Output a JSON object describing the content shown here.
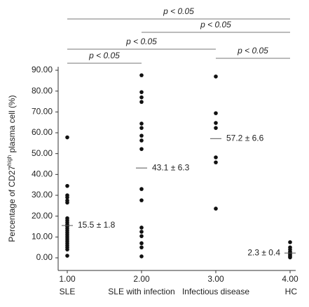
{
  "chart_data": {
    "type": "dot",
    "ylabel": [
      "Percentage of CD27",
      "high",
      " plasma cell (%)"
    ],
    "categories": [
      "SLE",
      "SLE with infection",
      "Infectious disease",
      "HC"
    ],
    "xlim": [
      1,
      4
    ],
    "xticks": [
      {
        "value": 1,
        "label": "1.00"
      },
      {
        "value": 2,
        "label": "2.00"
      },
      {
        "value": 3,
        "label": "3.00"
      },
      {
        "value": 4,
        "label": "4.00"
      }
    ],
    "ylim": [
      0,
      90
    ],
    "yticks": [
      {
        "value": 0,
        "label": "0.00"
      },
      {
        "value": 10,
        "label": "10.00"
      },
      {
        "value": 20,
        "label": "20.00"
      },
      {
        "value": 30,
        "label": "30.00"
      },
      {
        "value": 40,
        "label": "40.00"
      },
      {
        "value": 50,
        "label": "50.00"
      },
      {
        "value": 60,
        "label": "60.00"
      },
      {
        "value": 70,
        "label": "70.00"
      },
      {
        "value": 80,
        "label": "80.00"
      },
      {
        "value": 90,
        "label": "90.00"
      }
    ],
    "color": "#111111",
    "points": [
      [
        57.8,
        34.5,
        30,
        29,
        27.5,
        26.5,
        19,
        18,
        17,
        16,
        15,
        14,
        13,
        12,
        11,
        10,
        9,
        8,
        7,
        6,
        5,
        4,
        1
      ],
      [
        87.6,
        79.5,
        77,
        74.8,
        64.4,
        62.3,
        58.6,
        56.3,
        52.2,
        33,
        27.6,
        14.5,
        12.5,
        10.4,
        7,
        5,
        0.7
      ],
      [
        87,
        69.4,
        64.7,
        62.3,
        48.2,
        45.8,
        23.6
      ],
      [
        7.5,
        5,
        4,
        3,
        2.5,
        2,
        1.5,
        1,
        0.5,
        0.2
      ]
    ],
    "means": [
      15.5,
      43.1,
      57.2,
      2.3
    ],
    "mean_labels": [
      "15.5 ± 1.8",
      "43.1 ± 6.3",
      "57.2 ± 6.6",
      "2.3 ± 0.4"
    ],
    "brackets": [
      {
        "label": "p < 0.05",
        "groups": [
          1,
          4
        ]
      },
      {
        "label": "p < 0.05",
        "groups": [
          2,
          4
        ]
      },
      {
        "label": "p < 0.05",
        "groups": [
          1,
          3
        ]
      },
      {
        "label": "p < 0.05",
        "groups": [
          3,
          4
        ]
      },
      {
        "label": "p < 0.05",
        "groups": [
          1,
          2
        ]
      }
    ]
  }
}
